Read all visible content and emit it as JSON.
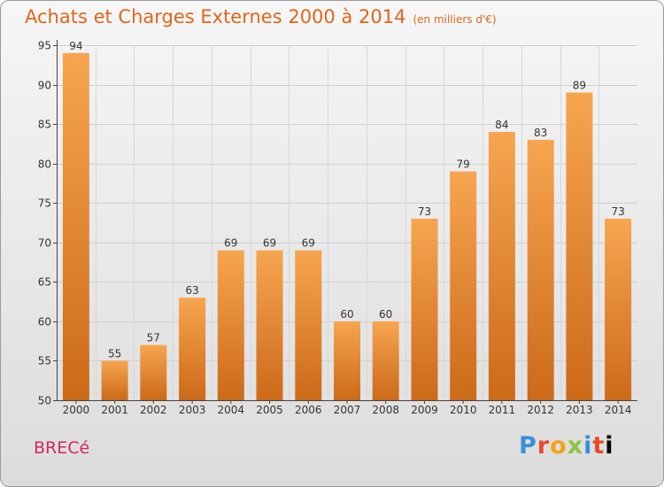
{
  "header": {
    "title": "Achats et Charges Externes 2000 à 2014",
    "unit": "(en milliers d'€)"
  },
  "footer": {
    "commune": "BRECé",
    "brand": "Proxiti"
  },
  "colors": {
    "bar_light": "#f7a550",
    "bar_dark": "#cc6a18",
    "title": "#e0661c",
    "commune": "#cf2a5a"
  },
  "chart_data": {
    "type": "bar",
    "title": "Achats et Charges Externes 2000 à 2014",
    "subtitle": "(en milliers d'€)",
    "categories": [
      "2000",
      "2001",
      "2002",
      "2003",
      "2004",
      "2005",
      "2006",
      "2007",
      "2008",
      "2009",
      "2010",
      "2011",
      "2012",
      "2013",
      "2014"
    ],
    "values": [
      94,
      55,
      57,
      63,
      69,
      69,
      69,
      60,
      60,
      73,
      79,
      84,
      83,
      89,
      73
    ],
    "ylim": [
      50,
      95
    ],
    "yticks": [
      50,
      55,
      60,
      65,
      70,
      75,
      80,
      85,
      90,
      95
    ],
    "grid": true,
    "data_labels": true
  }
}
